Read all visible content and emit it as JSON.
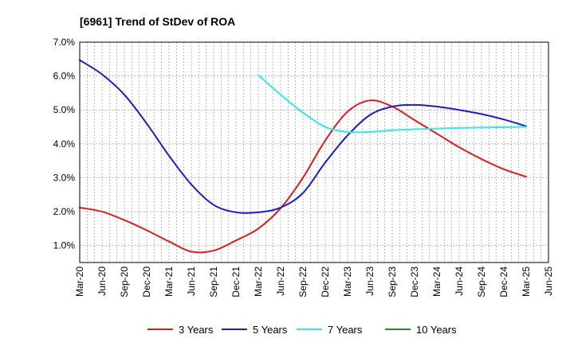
{
  "chart_data": {
    "type": "line",
    "title": "[6961]  Trend of StDev of ROA",
    "xlabel": "",
    "ylabel": "",
    "x_ticks": [
      "Mar-20",
      "Jun-20",
      "Sep-20",
      "Dec-20",
      "Mar-21",
      "Jun-21",
      "Sep-21",
      "Dec-21",
      "Mar-22",
      "Jun-22",
      "Sep-22",
      "Dec-22",
      "Mar-23",
      "Jun-23",
      "Sep-23",
      "Dec-23",
      "Mar-24",
      "Jun-24",
      "Sep-24",
      "Dec-24",
      "Mar-25",
      "Jun-25"
    ],
    "y_ticks": [
      "1.0%",
      "2.0%",
      "3.0%",
      "4.0%",
      "5.0%",
      "6.0%",
      "7.0%"
    ],
    "ylim": [
      0.5,
      7.0
    ],
    "grid": true,
    "legend_position": "bottom",
    "series": [
      {
        "name": "3 Years",
        "color": "#e31a1c",
        "x": [
          "Mar-20",
          "Jun-20",
          "Sep-20",
          "Dec-20",
          "Mar-21",
          "Jun-21",
          "Sep-21",
          "Dec-21",
          "Mar-22",
          "Jun-22",
          "Sep-22",
          "Dec-22",
          "Mar-23",
          "Jun-23",
          "Sep-23",
          "Dec-23",
          "Mar-24",
          "Jun-24",
          "Sep-24",
          "Dec-24",
          "Mar-25"
        ],
        "values": [
          2.12,
          2.0,
          1.75,
          1.45,
          1.12,
          0.82,
          0.85,
          1.15,
          1.5,
          2.1,
          3.0,
          4.1,
          4.95,
          5.28,
          5.1,
          4.7,
          4.3,
          3.9,
          3.55,
          3.25,
          3.03
        ]
      },
      {
        "name": "5 Years",
        "color": "#1c1cc8",
        "x": [
          "Mar-20",
          "Jun-20",
          "Sep-20",
          "Dec-20",
          "Mar-21",
          "Jun-21",
          "Sep-21",
          "Dec-21",
          "Mar-22",
          "Jun-22",
          "Sep-22",
          "Dec-22",
          "Mar-23",
          "Jun-23",
          "Sep-23",
          "Dec-23",
          "Mar-24",
          "Jun-24",
          "Sep-24",
          "Dec-24",
          "Mar-25"
        ],
        "values": [
          6.47,
          6.05,
          5.45,
          4.6,
          3.65,
          2.8,
          2.2,
          1.98,
          1.98,
          2.12,
          2.55,
          3.45,
          4.25,
          4.85,
          5.1,
          5.15,
          5.1,
          5.0,
          4.88,
          4.72,
          4.52
        ]
      },
      {
        "name": "7 Years",
        "color": "#33e8e8",
        "x": [
          "Mar-22",
          "Jun-22",
          "Sep-22",
          "Dec-22",
          "Mar-23",
          "Jun-23",
          "Sep-23",
          "Dec-23",
          "Mar-24",
          "Jun-24",
          "Sep-24",
          "Dec-24",
          "Mar-25"
        ],
        "values": [
          6.03,
          5.45,
          4.92,
          4.5,
          4.35,
          4.35,
          4.4,
          4.43,
          4.45,
          4.47,
          4.48,
          4.49,
          4.5
        ]
      },
      {
        "name": "10 Years",
        "color": "#2a8a2a",
        "x": [],
        "values": []
      }
    ]
  }
}
